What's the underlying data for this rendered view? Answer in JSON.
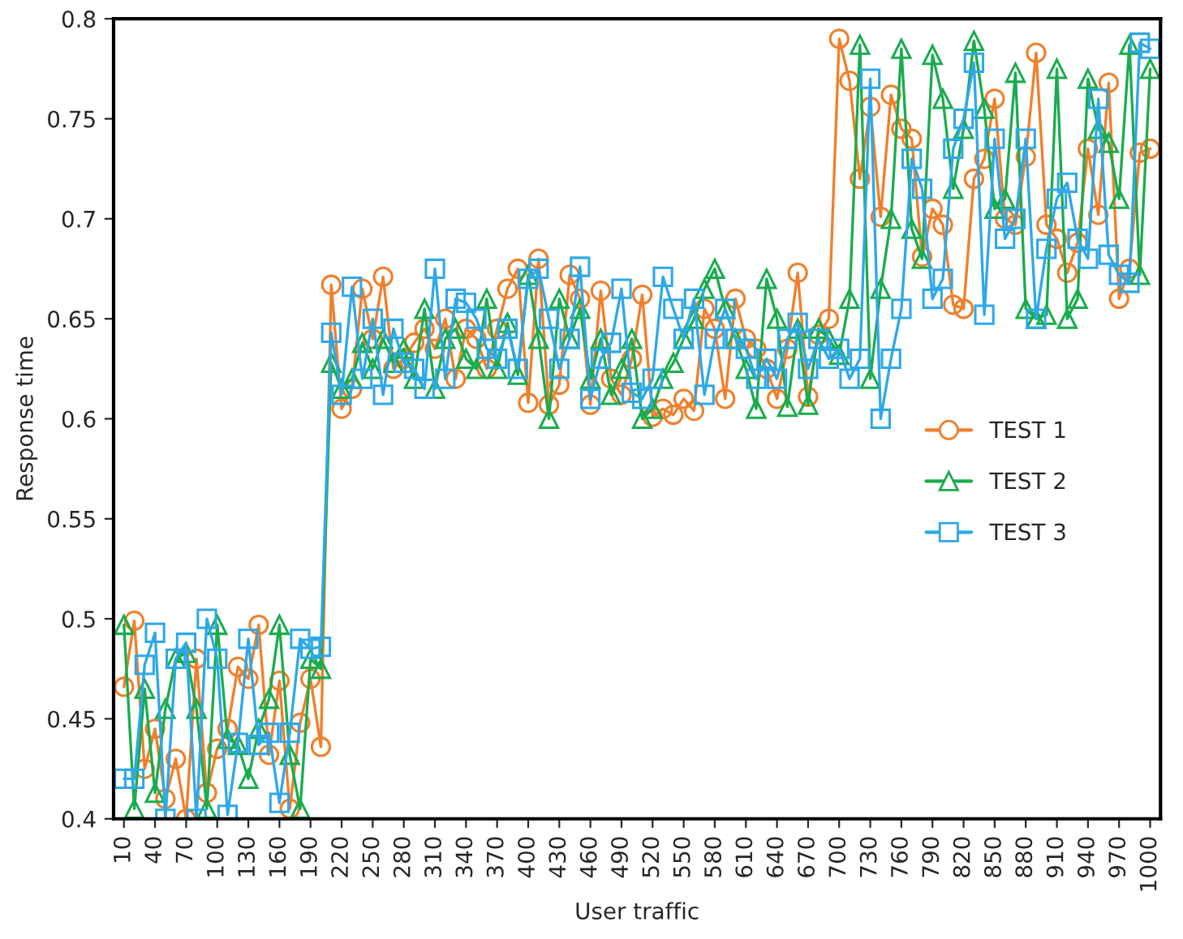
{
  "chart_data": {
    "type": "line",
    "xlabel": "User traffic",
    "ylabel": "Response time",
    "categories": [
      "10",
      null,
      null,
      "40",
      null,
      null,
      "70",
      null,
      null,
      "100",
      null,
      null,
      "130",
      null,
      null,
      "160",
      null,
      null,
      "190",
      null,
      null,
      "220",
      null,
      null,
      "250",
      null,
      null,
      "280",
      null,
      null,
      "310",
      null,
      null,
      "340",
      null,
      null,
      "370",
      null,
      null,
      "400",
      null,
      null,
      "430",
      null,
      null,
      "460",
      null,
      null,
      "490",
      null,
      null,
      "520",
      null,
      null,
      "550",
      null,
      null,
      "580",
      null,
      null,
      "610",
      null,
      null,
      "640",
      null,
      null,
      "670",
      null,
      null,
      "700",
      null,
      null,
      "730",
      null,
      null,
      "760",
      null,
      null,
      "790",
      null,
      null,
      "820",
      null,
      null,
      "850",
      null,
      null,
      "880",
      null,
      null,
      "910",
      null,
      null,
      "940",
      null,
      null,
      "970",
      null,
      null,
      "1000"
    ],
    "series": [
      {
        "name": "TEST 1",
        "color": "#f07f2a",
        "marker": "circle",
        "values": [
          0.466,
          0.499,
          0.425,
          0.445,
          0.41,
          0.43,
          0.4,
          0.48,
          0.413,
          0.435,
          0.445,
          0.476,
          0.47,
          0.497,
          0.432,
          0.469,
          0.405,
          0.448,
          0.47,
          0.436,
          0.667,
          0.605,
          0.615,
          0.665,
          0.64,
          0.671,
          0.625,
          0.63,
          0.638,
          0.645,
          0.635,
          0.65,
          0.62,
          0.645,
          0.64,
          0.625,
          0.645,
          0.665,
          0.675,
          0.608,
          0.68,
          0.607,
          0.617,
          0.672,
          0.66,
          0.607,
          0.664,
          0.62,
          0.612,
          0.63,
          0.662,
          0.601,
          0.605,
          0.602,
          0.61,
          0.604,
          0.655,
          0.645,
          0.61,
          0.66,
          0.64,
          0.635,
          0.625,
          0.61,
          0.635,
          0.673,
          0.611,
          0.642,
          0.65,
          0.79,
          0.769,
          0.72,
          0.756,
          0.701,
          0.762,
          0.745,
          0.74,
          0.681,
          0.705,
          0.697,
          0.657,
          0.655,
          0.72,
          0.73,
          0.76,
          0.7,
          0.697,
          0.731,
          0.783,
          0.697,
          0.69,
          0.673,
          0.688,
          0.735,
          0.702,
          0.768,
          0.66,
          0.675,
          0.733,
          0.735
        ]
      },
      {
        "name": "TEST 2",
        "color": "#1aac4e",
        "marker": "triangle",
        "values": [
          0.497,
          0.405,
          0.465,
          0.413,
          0.455,
          0.48,
          0.483,
          0.455,
          0.405,
          0.497,
          0.44,
          0.437,
          0.42,
          0.445,
          0.46,
          0.497,
          0.432,
          0.405,
          0.48,
          0.475,
          0.628,
          0.615,
          0.62,
          0.638,
          0.625,
          0.64,
          0.628,
          0.635,
          0.62,
          0.655,
          0.615,
          0.64,
          0.645,
          0.63,
          0.625,
          0.66,
          0.625,
          0.648,
          0.622,
          0.672,
          0.64,
          0.6,
          0.66,
          0.64,
          0.655,
          0.62,
          0.64,
          0.612,
          0.625,
          0.64,
          0.6,
          0.605,
          0.62,
          0.628,
          0.64,
          0.65,
          0.665,
          0.675,
          0.655,
          0.64,
          0.625,
          0.605,
          0.67,
          0.65,
          0.606,
          0.645,
          0.607,
          0.645,
          0.64,
          0.632,
          0.66,
          0.787,
          0.62,
          0.665,
          0.7,
          0.785,
          0.695,
          0.68,
          0.782,
          0.76,
          0.715,
          0.745,
          0.789,
          0.755,
          0.705,
          0.71,
          0.773,
          0.655,
          0.65,
          0.652,
          0.775,
          0.65,
          0.66,
          0.77,
          0.745,
          0.738,
          0.71,
          0.787,
          0.672,
          0.775
        ]
      },
      {
        "name": "TEST 3",
        "color": "#2ea8e8",
        "marker": "square",
        "values": [
          0.42,
          0.42,
          0.477,
          0.493,
          0.4,
          0.48,
          0.488,
          0.4,
          0.5,
          0.48,
          0.402,
          0.438,
          0.49,
          0.437,
          0.443,
          0.408,
          0.443,
          0.49,
          0.485,
          0.486,
          0.643,
          0.612,
          0.666,
          0.62,
          0.65,
          0.612,
          0.645,
          0.628,
          0.625,
          0.615,
          0.675,
          0.62,
          0.66,
          0.658,
          0.65,
          0.635,
          0.63,
          0.645,
          0.625,
          0.67,
          0.675,
          0.65,
          0.625,
          0.64,
          0.676,
          0.61,
          0.63,
          0.638,
          0.665,
          0.613,
          0.61,
          0.62,
          0.671,
          0.655,
          0.64,
          0.66,
          0.612,
          0.64,
          0.655,
          0.64,
          0.635,
          0.62,
          0.63,
          0.62,
          0.64,
          0.648,
          0.625,
          0.64,
          0.63,
          0.635,
          0.62,
          0.63,
          0.77,
          0.6,
          0.63,
          0.655,
          0.73,
          0.715,
          0.66,
          0.67,
          0.735,
          0.75,
          0.778,
          0.652,
          0.74,
          0.69,
          0.7,
          0.74,
          0.65,
          0.685,
          0.71,
          0.718,
          0.69,
          0.68,
          0.76,
          0.682,
          0.672,
          0.668,
          0.788,
          0.785
        ]
      }
    ],
    "ylim": [
      0.4,
      0.8
    ],
    "yticks": [
      0.4,
      0.45,
      0.5,
      0.55,
      0.6,
      0.65,
      0.7,
      0.75,
      0.8
    ],
    "legend": "right",
    "grid": false,
    "line_style": "solid"
  }
}
